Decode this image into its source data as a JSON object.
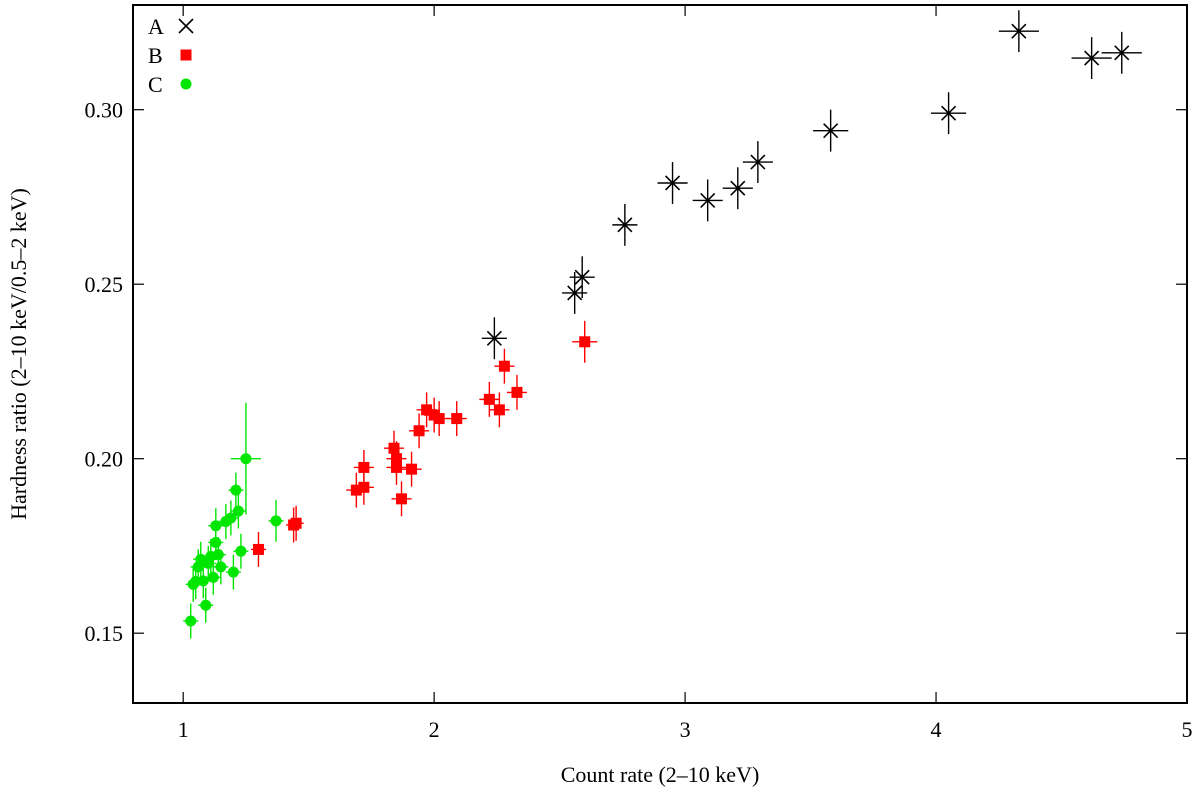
{
  "chart_data": {
    "type": "scatter",
    "title": "",
    "xlabel": "Count rate (2–10 keV)",
    "ylabel": "Hardness ratio (2–10 keV/0.5–2 keV)",
    "xlim": [
      0.8,
      5.0
    ],
    "ylim": [
      0.13,
      0.33
    ],
    "xticks": [
      1,
      2,
      3,
      4,
      5
    ],
    "xtick_labels": [
      "1",
      "2",
      "3",
      "4",
      "5"
    ],
    "yticks": [
      0.15,
      0.2,
      0.25,
      0.3
    ],
    "ytick_labels": [
      "0.15",
      "0.20",
      "0.25",
      "0.30"
    ],
    "grid": false,
    "legend_position": "top-left",
    "series": [
      {
        "name": "A",
        "marker": "cross",
        "color": "#000000",
        "points": [
          {
            "x": 2.24,
            "y": 0.2345,
            "xerr": 0.05,
            "yerr": 0.006
          },
          {
            "x": 2.56,
            "y": 0.2475,
            "xerr": 0.05,
            "yerr": 0.006
          },
          {
            "x": 2.59,
            "y": 0.252,
            "xerr": 0.05,
            "yerr": 0.006
          },
          {
            "x": 2.76,
            "y": 0.267,
            "xerr": 0.05,
            "yerr": 0.006
          },
          {
            "x": 2.95,
            "y": 0.279,
            "xerr": 0.06,
            "yerr": 0.006
          },
          {
            "x": 3.09,
            "y": 0.274,
            "xerr": 0.06,
            "yerr": 0.006
          },
          {
            "x": 3.21,
            "y": 0.2775,
            "xerr": 0.06,
            "yerr": 0.006
          },
          {
            "x": 3.29,
            "y": 0.285,
            "xerr": 0.06,
            "yerr": 0.006
          },
          {
            "x": 3.58,
            "y": 0.294,
            "xerr": 0.07,
            "yerr": 0.006
          },
          {
            "x": 4.05,
            "y": 0.299,
            "xerr": 0.07,
            "yerr": 0.006
          },
          {
            "x": 4.33,
            "y": 0.3225,
            "xerr": 0.08,
            "yerr": 0.006
          },
          {
            "x": 4.62,
            "y": 0.3148,
            "xerr": 0.08,
            "yerr": 0.006
          },
          {
            "x": 4.74,
            "y": 0.3163,
            "xerr": 0.08,
            "yerr": 0.006
          }
        ]
      },
      {
        "name": "B",
        "marker": "square",
        "color": "#ff0000",
        "points": [
          {
            "x": 1.3,
            "y": 0.174,
            "xerr": 0.03,
            "yerr": 0.005
          },
          {
            "x": 1.44,
            "y": 0.181,
            "xerr": 0.03,
            "yerr": 0.005
          },
          {
            "x": 1.45,
            "y": 0.1815,
            "xerr": 0.03,
            "yerr": 0.005
          },
          {
            "x": 1.69,
            "y": 0.191,
            "xerr": 0.04,
            "yerr": 0.005
          },
          {
            "x": 1.72,
            "y": 0.1975,
            "xerr": 0.04,
            "yerr": 0.005
          },
          {
            "x": 1.72,
            "y": 0.1918,
            "xerr": 0.04,
            "yerr": 0.005
          },
          {
            "x": 1.84,
            "y": 0.203,
            "xerr": 0.04,
            "yerr": 0.005
          },
          {
            "x": 1.85,
            "y": 0.2,
            "xerr": 0.04,
            "yerr": 0.005
          },
          {
            "x": 1.85,
            "y": 0.1975,
            "xerr": 0.04,
            "yerr": 0.005
          },
          {
            "x": 1.87,
            "y": 0.1885,
            "xerr": 0.04,
            "yerr": 0.005
          },
          {
            "x": 1.91,
            "y": 0.197,
            "xerr": 0.04,
            "yerr": 0.005
          },
          {
            "x": 1.94,
            "y": 0.208,
            "xerr": 0.04,
            "yerr": 0.005
          },
          {
            "x": 1.97,
            "y": 0.214,
            "xerr": 0.04,
            "yerr": 0.005
          },
          {
            "x": 2.0,
            "y": 0.2125,
            "xerr": 0.04,
            "yerr": 0.005
          },
          {
            "x": 2.02,
            "y": 0.2115,
            "xerr": 0.04,
            "yerr": 0.005
          },
          {
            "x": 2.09,
            "y": 0.2115,
            "xerr": 0.04,
            "yerr": 0.005
          },
          {
            "x": 2.22,
            "y": 0.217,
            "xerr": 0.04,
            "yerr": 0.005
          },
          {
            "x": 2.26,
            "y": 0.214,
            "xerr": 0.04,
            "yerr": 0.005
          },
          {
            "x": 2.28,
            "y": 0.2265,
            "xerr": 0.04,
            "yerr": 0.005
          },
          {
            "x": 2.33,
            "y": 0.219,
            "xerr": 0.04,
            "yerr": 0.005
          },
          {
            "x": 2.6,
            "y": 0.2335,
            "xerr": 0.05,
            "yerr": 0.006
          }
        ]
      },
      {
        "name": "C",
        "marker": "circle",
        "color": "#00e600",
        "points": [
          {
            "x": 1.03,
            "y": 0.1535,
            "xerr": 0.03,
            "yerr": 0.005
          },
          {
            "x": 1.04,
            "y": 0.164,
            "xerr": 0.03,
            "yerr": 0.005
          },
          {
            "x": 1.05,
            "y": 0.1648,
            "xerr": 0.03,
            "yerr": 0.005
          },
          {
            "x": 1.06,
            "y": 0.169,
            "xerr": 0.03,
            "yerr": 0.005
          },
          {
            "x": 1.07,
            "y": 0.1712,
            "xerr": 0.03,
            "yerr": 0.005
          },
          {
            "x": 1.08,
            "y": 0.165,
            "xerr": 0.03,
            "yerr": 0.005
          },
          {
            "x": 1.09,
            "y": 0.158,
            "xerr": 0.03,
            "yerr": 0.005
          },
          {
            "x": 1.1,
            "y": 0.17,
            "xerr": 0.03,
            "yerr": 0.005
          },
          {
            "x": 1.11,
            "y": 0.172,
            "xerr": 0.03,
            "yerr": 0.005
          },
          {
            "x": 1.12,
            "y": 0.166,
            "xerr": 0.03,
            "yerr": 0.005
          },
          {
            "x": 1.13,
            "y": 0.176,
            "xerr": 0.03,
            "yerr": 0.005
          },
          {
            "x": 1.13,
            "y": 0.1808,
            "xerr": 0.03,
            "yerr": 0.005
          },
          {
            "x": 1.14,
            "y": 0.1725,
            "xerr": 0.03,
            "yerr": 0.005
          },
          {
            "x": 1.15,
            "y": 0.169,
            "xerr": 0.03,
            "yerr": 0.005
          },
          {
            "x": 1.17,
            "y": 0.182,
            "xerr": 0.03,
            "yerr": 0.005
          },
          {
            "x": 1.19,
            "y": 0.183,
            "xerr": 0.03,
            "yerr": 0.005
          },
          {
            "x": 1.2,
            "y": 0.1675,
            "xerr": 0.03,
            "yerr": 0.005
          },
          {
            "x": 1.21,
            "y": 0.191,
            "xerr": 0.03,
            "yerr": 0.005
          },
          {
            "x": 1.22,
            "y": 0.185,
            "xerr": 0.03,
            "yerr": 0.005
          },
          {
            "x": 1.23,
            "y": 0.1735,
            "xerr": 0.03,
            "yerr": 0.005
          },
          {
            "x": 1.25,
            "y": 0.2,
            "xerr": 0.06,
            "yerr": 0.016
          },
          {
            "x": 1.37,
            "y": 0.1822,
            "xerr": 0.03,
            "yerr": 0.006
          }
        ]
      }
    ]
  }
}
